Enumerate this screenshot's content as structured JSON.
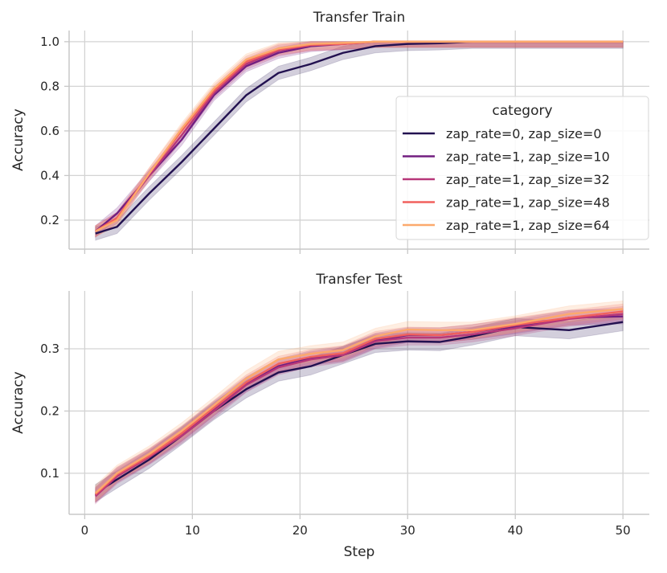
{
  "chart_data": [
    {
      "type": "line",
      "title": "Transfer Train",
      "xlabel": "",
      "ylabel": "Accuracy",
      "xlim": [
        -1.45,
        52.45
      ],
      "ylim": [
        0.07,
        1.05
      ],
      "xticks": [
        0,
        10,
        20,
        30,
        40,
        50
      ],
      "yticks": [
        0.2,
        0.4,
        0.6,
        0.8,
        1.0
      ],
      "ytick_labels": [
        "0.2",
        "0.4",
        "0.6",
        "0.8",
        "1.0"
      ],
      "grid": true,
      "legend": {
        "title": "category",
        "placement": "center-right"
      },
      "x": [
        1,
        3,
        6,
        9,
        12,
        15,
        18,
        21,
        24,
        27,
        30,
        33,
        36,
        39,
        42,
        45,
        50
      ],
      "series": [
        {
          "name": "zap_rate=0, zap_size=0",
          "color": "#221150",
          "ci": 0.03,
          "values": [
            0.14,
            0.17,
            0.32,
            0.46,
            0.61,
            0.76,
            0.86,
            0.9,
            0.95,
            0.98,
            0.99,
            0.993,
            1.0,
            1.0,
            1.0,
            1.0,
            1.0
          ]
        },
        {
          "name": "zap_rate=1, zap_size=10",
          "color": "#721f81",
          "ci": 0.025,
          "values": [
            0.15,
            0.23,
            0.4,
            0.56,
            0.76,
            0.89,
            0.95,
            0.98,
            0.99,
            1.0,
            1.0,
            1.0,
            1.0,
            1.0,
            1.0,
            1.0,
            1.0
          ]
        },
        {
          "name": "zap_rate=1, zap_size=32",
          "color": "#b73779",
          "ci": 0.025,
          "values": [
            0.15,
            0.21,
            0.4,
            0.58,
            0.77,
            0.9,
            0.96,
            0.985,
            0.99,
            1.0,
            1.0,
            1.0,
            1.0,
            1.0,
            1.0,
            1.0,
            1.0
          ]
        },
        {
          "name": "zap_rate=1, zap_size=48",
          "color": "#f1605d",
          "ci": 0.025,
          "values": [
            0.15,
            0.21,
            0.41,
            0.6,
            0.78,
            0.91,
            0.965,
            0.985,
            0.99,
            1.0,
            1.0,
            1.0,
            1.0,
            1.0,
            1.0,
            1.0,
            1.0
          ]
        },
        {
          "name": "zap_rate=1, zap_size=64",
          "color": "#fca96c",
          "ci": 0.025,
          "values": [
            0.15,
            0.2,
            0.41,
            0.61,
            0.79,
            0.92,
            0.97,
            0.99,
            0.995,
            1.0,
            1.0,
            1.0,
            1.0,
            1.0,
            1.0,
            1.0,
            1.0
          ]
        }
      ]
    },
    {
      "type": "line",
      "title": "Transfer Test",
      "xlabel": "Step",
      "ylabel": "Accuracy",
      "xlim": [
        -1.45,
        52.45
      ],
      "ylim": [
        0.034,
        0.393
      ],
      "xticks": [
        0,
        10,
        20,
        30,
        40,
        50
      ],
      "yticks": [
        0.1,
        0.2,
        0.3
      ],
      "ytick_labels": [
        "0.1",
        "0.2",
        "0.3"
      ],
      "grid": true,
      "x": [
        1,
        3,
        6,
        9,
        12,
        15,
        18,
        21,
        24,
        27,
        30,
        33,
        36,
        40,
        45,
        50
      ],
      "series": [
        {
          "name": "zap_rate=0, zap_size=0",
          "color": "#221150",
          "ci": 0.014,
          "values": [
            0.068,
            0.09,
            0.122,
            0.16,
            0.2,
            0.235,
            0.262,
            0.272,
            0.29,
            0.308,
            0.312,
            0.311,
            0.32,
            0.335,
            0.33,
            0.343
          ]
        },
        {
          "name": "zap_rate=1, zap_size=10",
          "color": "#721f81",
          "ci": 0.012,
          "values": [
            0.065,
            0.097,
            0.127,
            0.163,
            0.204,
            0.243,
            0.272,
            0.285,
            0.292,
            0.313,
            0.322,
            0.322,
            0.327,
            0.336,
            0.35,
            0.352
          ]
        },
        {
          "name": "zap_rate=1, zap_size=32",
          "color": "#b73779",
          "ci": 0.012,
          "values": [
            0.063,
            0.095,
            0.126,
            0.16,
            0.2,
            0.242,
            0.27,
            0.283,
            0.29,
            0.312,
            0.318,
            0.318,
            0.323,
            0.333,
            0.348,
            0.356
          ]
        },
        {
          "name": "zap_rate=1, zap_size=48",
          "color": "#f1605d",
          "ci": 0.012,
          "values": [
            0.066,
            0.098,
            0.128,
            0.164,
            0.205,
            0.246,
            0.276,
            0.287,
            0.293,
            0.316,
            0.323,
            0.322,
            0.327,
            0.338,
            0.35,
            0.36
          ]
        },
        {
          "name": "zap_rate=1, zap_size=64",
          "color": "#fca96c",
          "ci": 0.013,
          "values": [
            0.068,
            0.1,
            0.131,
            0.168,
            0.209,
            0.252,
            0.283,
            0.292,
            0.298,
            0.32,
            0.331,
            0.33,
            0.33,
            0.34,
            0.356,
            0.364
          ]
        }
      ]
    }
  ]
}
